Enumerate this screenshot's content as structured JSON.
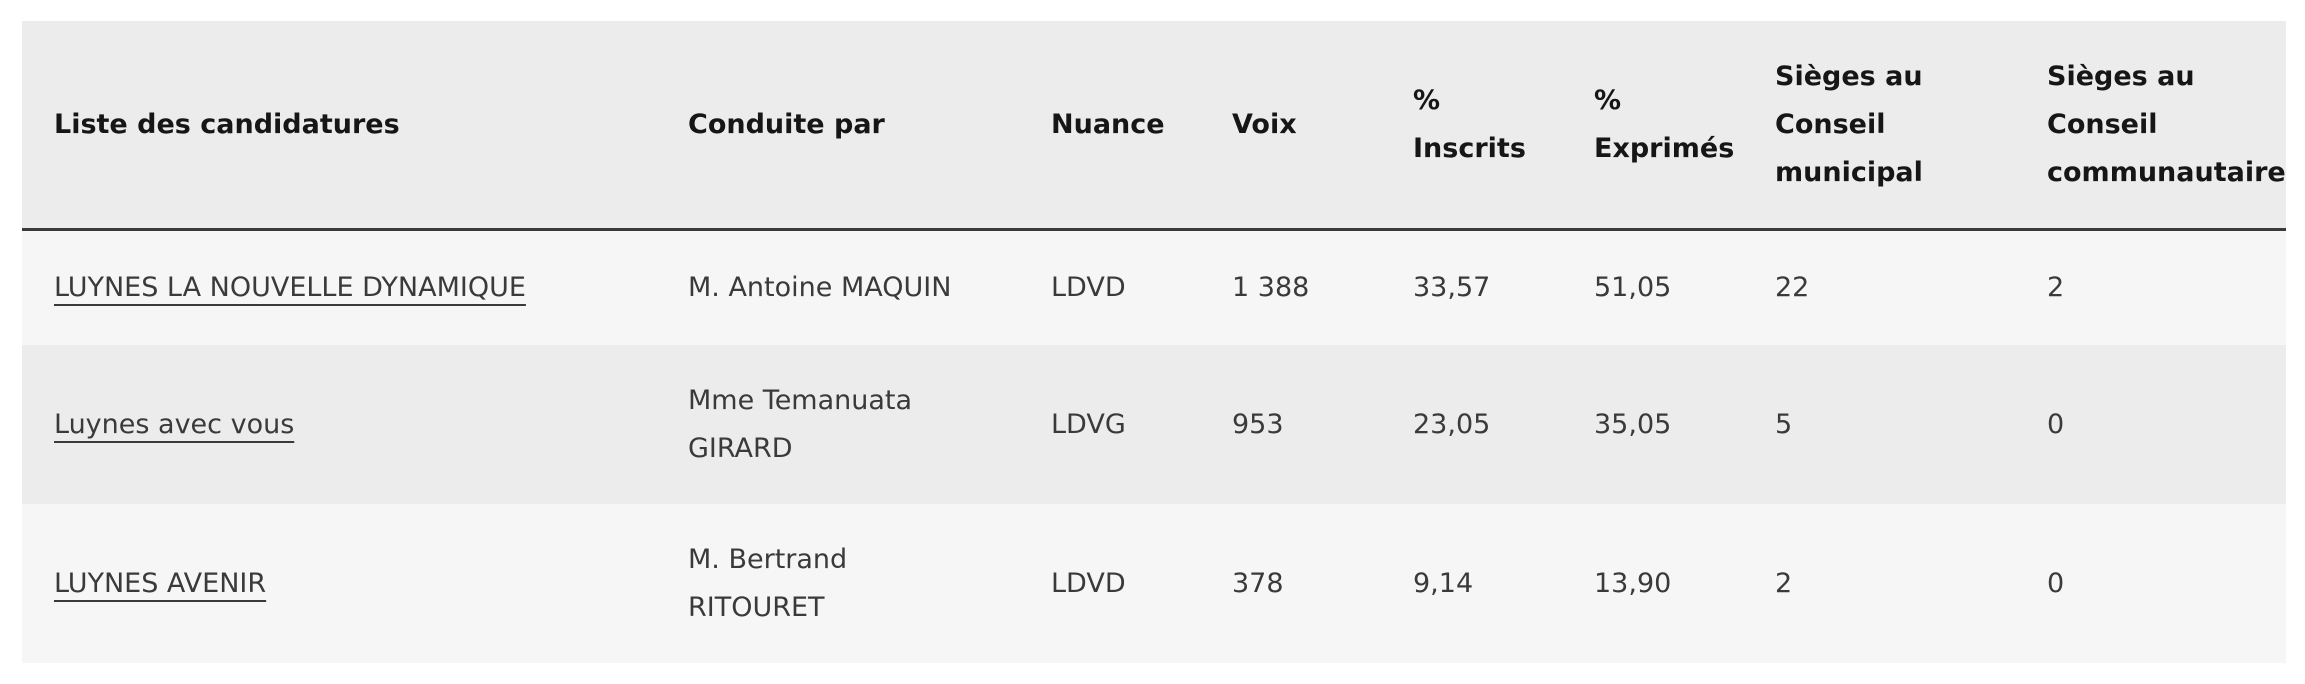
{
  "table": {
    "headers": [
      [
        "Liste des candidatures"
      ],
      [
        "Conduite par"
      ],
      [
        "Nuance"
      ],
      [
        "Voix"
      ],
      [
        "%",
        "Inscrits"
      ],
      [
        "%",
        "Exprimés"
      ],
      [
        "Sièges au",
        "Conseil",
        "municipal"
      ],
      [
        "Sièges au",
        "Conseil",
        "communautaire"
      ]
    ],
    "rows": [
      [
        [
          "LUYNES LA NOUVELLE DYNAMIQUE"
        ],
        [
          "M. Antoine MAQUIN"
        ],
        [
          "LDVD"
        ],
        [
          "1 388"
        ],
        [
          "33,57"
        ],
        [
          "51,05"
        ],
        [
          "22"
        ],
        [
          "2"
        ]
      ],
      [
        [
          "Luynes avec vous"
        ],
        [
          "Mme Temanuata",
          "GIRARD"
        ],
        [
          "LDVG"
        ],
        [
          "953"
        ],
        [
          "23,05"
        ],
        [
          "35,05"
        ],
        [
          "5"
        ],
        [
          "0"
        ]
      ],
      [
        [
          "LUYNES AVENIR"
        ],
        [
          "M. Bertrand",
          "RITOURET"
        ],
        [
          "LDVD"
        ],
        [
          "378"
        ],
        [
          "9,14"
        ],
        [
          "13,90"
        ],
        [
          "2"
        ],
        [
          "0"
        ]
      ]
    ]
  }
}
